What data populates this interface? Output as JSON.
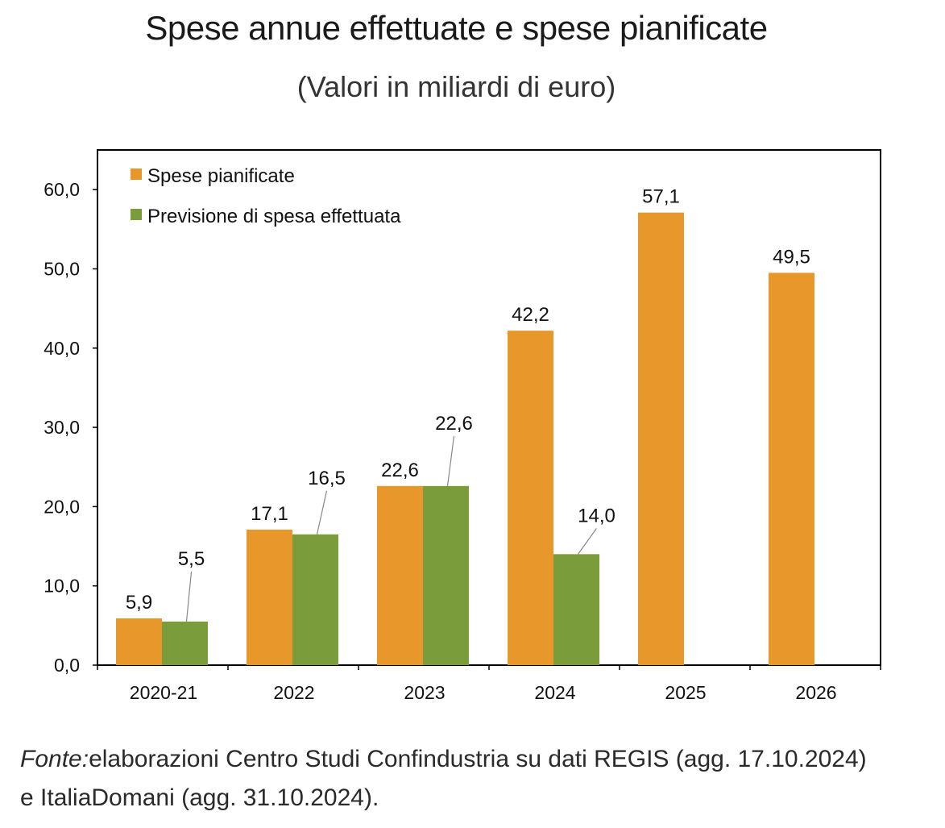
{
  "title": "Spese annue effettuate e spese pianificate",
  "subtitle": "(Valori in miliardi di euro)",
  "source": {
    "label": "Fonte:",
    "line1": "elaborazioni Centro Studi Confindustria su dati REGIS (agg. 17.10.2024)",
    "line2": "e ItaliaDomani (agg. 31.10.2024)."
  },
  "colors": {
    "planned": "#E8972A",
    "actual": "#7A9C3A",
    "axis": "#000000"
  },
  "chart_data": {
    "type": "bar",
    "categories": [
      "2020-21",
      "2022",
      "2023",
      "2024",
      "2025",
      "2026"
    ],
    "series": [
      {
        "name": "Spese pianificate",
        "values": [
          5.9,
          17.1,
          22.6,
          42.2,
          57.1,
          49.5
        ],
        "labels": [
          "5,9",
          "17,1",
          "22,6",
          "42,2",
          "57,1",
          "49,5"
        ]
      },
      {
        "name": "Previsione di spesa effettuata",
        "values": [
          5.5,
          16.5,
          22.6,
          14.0,
          null,
          null
        ],
        "labels": [
          "5,5",
          "16,5",
          "22,6",
          "14,0",
          null,
          null
        ]
      }
    ],
    "ylim": [
      0,
      65
    ],
    "yticks": [
      0,
      10,
      20,
      30,
      40,
      50,
      60
    ],
    "ytick_labels": [
      "0,0",
      "10,0",
      "20,0",
      "30,0",
      "40,0",
      "50,0",
      "60,0"
    ],
    "xlabel": "",
    "ylabel": "",
    "grid": false,
    "legend_position": "top-left"
  }
}
